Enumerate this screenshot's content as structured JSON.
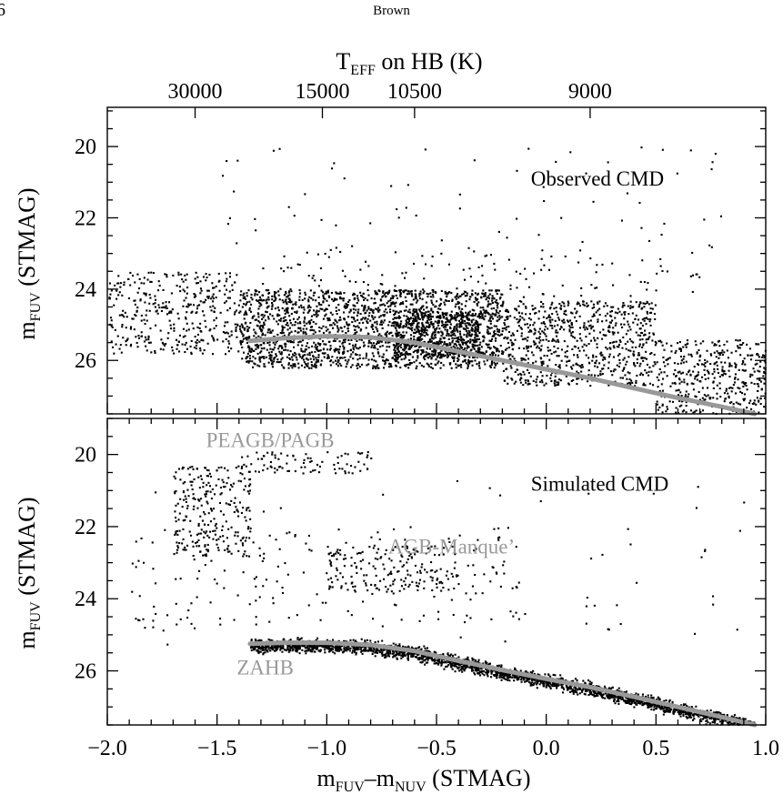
{
  "page": {
    "number": "6",
    "running_head": "Brown"
  },
  "figure": {
    "top_axis": {
      "label_main": "T",
      "label_sub": "EFF",
      "label_rest": " on HB (K)",
      "ticks": [
        {
          "label": "30000",
          "x": -1.6
        },
        {
          "label": "15000",
          "x": -1.02
        },
        {
          "label": "10500",
          "x": -0.6
        },
        {
          "label": "9000",
          "x": 0.2
        }
      ]
    },
    "y_label": {
      "main": "m",
      "sub": "FUV",
      "rest": " (STMAG)"
    },
    "x_label": {
      "m1": "m",
      "sub1": "FUV",
      "dash": "–",
      "m2": "m",
      "sub2": "NUV",
      "rest": " (STMAG)"
    },
    "x_tick_labels": [
      "−2.0",
      "−1.5",
      "−1.0",
      "−0.5",
      "0.0",
      "0.5",
      "1.0"
    ],
    "y_tick_labels": [
      "20",
      "22",
      "24",
      "26"
    ]
  },
  "chart_data": [
    {
      "type": "scatter",
      "panel": "top",
      "title": "Observed CMD",
      "xlim": [
        -2.0,
        1.0
      ],
      "ylim": [
        27.5,
        18.9
      ],
      "x_ticks": [
        -2.0,
        -1.5,
        -1.0,
        -0.5,
        0.0,
        0.5,
        1.0
      ],
      "y_ticks": [
        20,
        22,
        24,
        26
      ],
      "point_color": "#000000",
      "model_curve": {
        "name": "ZAHB",
        "color": "#999999",
        "x": [
          -1.35,
          -1.2,
          -1.0,
          -0.8,
          -0.6,
          -0.4,
          -0.2,
          0.0,
          0.2,
          0.4,
          0.6,
          0.8,
          0.95
        ],
        "y": [
          25.45,
          25.38,
          25.32,
          25.35,
          25.5,
          25.75,
          26.0,
          26.25,
          26.5,
          26.78,
          27.05,
          27.3,
          27.5
        ]
      },
      "point_density": [
        {
          "x": [
            -2.0,
            -1.4
          ],
          "y": [
            23.5,
            25.8
          ],
          "count": 380
        },
        {
          "x": [
            -1.4,
            -0.2
          ],
          "y": [
            24.0,
            26.2
          ],
          "count": 1900
        },
        {
          "x": [
            -0.7,
            -0.3
          ],
          "y": [
            24.6,
            25.9
          ],
          "count": 500
        },
        {
          "x": [
            -0.2,
            0.5
          ],
          "y": [
            24.3,
            26.7
          ],
          "count": 750
        },
        {
          "x": [
            0.5,
            1.0
          ],
          "y": [
            25.4,
            27.5
          ],
          "count": 420
        },
        {
          "x": [
            -1.3,
            0.7
          ],
          "y": [
            22.8,
            24.2
          ],
          "count": 140
        },
        {
          "x": [
            -1.5,
            0.8
          ],
          "y": [
            20.0,
            22.8
          ],
          "count": 65
        }
      ]
    },
    {
      "type": "scatter",
      "panel": "bottom",
      "title": "Simulated CMD",
      "xlim": [
        -2.0,
        1.0
      ],
      "ylim": [
        27.5,
        19.0
      ],
      "x_ticks": [
        -2.0,
        -1.5,
        -1.0,
        -0.5,
        0.0,
        0.5,
        1.0
      ],
      "y_ticks": [
        20,
        22,
        24,
        26
      ],
      "point_color": "#000000",
      "annotations": [
        {
          "text": "PEAGB/PAGB",
          "x": -1.55,
          "y": 19.8,
          "color": "#999999"
        },
        {
          "text": "AGB-Manque’",
          "x": -0.72,
          "y": 22.75,
          "color": "#999999"
        },
        {
          "text": "ZAHB",
          "x": -1.41,
          "y": 26.1,
          "color": "#999999"
        }
      ],
      "model_curve": {
        "name": "ZAHB",
        "color": "#999999",
        "x": [
          -1.35,
          -1.2,
          -1.0,
          -0.8,
          -0.6,
          -0.4,
          -0.2,
          0.0,
          0.2,
          0.4,
          0.6,
          0.8,
          0.95
        ],
        "y": [
          25.25,
          25.22,
          25.22,
          25.28,
          25.45,
          25.72,
          25.98,
          26.22,
          26.45,
          26.72,
          27.0,
          27.28,
          27.5
        ]
      },
      "point_density": [
        {
          "x": [
            -1.35,
            0.95
          ],
          "y": [
            25.2,
            27.5
          ],
          "count": 2600,
          "follows_curve": true
        },
        {
          "x": [
            -1.7,
            -1.35
          ],
          "y": [
            20.3,
            22.8
          ],
          "count": 260
        },
        {
          "x": [
            -1.4,
            -0.8
          ],
          "y": [
            19.9,
            20.5
          ],
          "count": 90
        },
        {
          "x": [
            -1.0,
            -0.4
          ],
          "y": [
            22.5,
            23.8
          ],
          "count": 170
        },
        {
          "x": [
            -1.9,
            -0.1
          ],
          "y": [
            22.0,
            24.8
          ],
          "count": 160
        },
        {
          "x": [
            -1.9,
            0.9
          ],
          "y": [
            20.5,
            25.5
          ],
          "count": 90
        }
      ]
    }
  ]
}
